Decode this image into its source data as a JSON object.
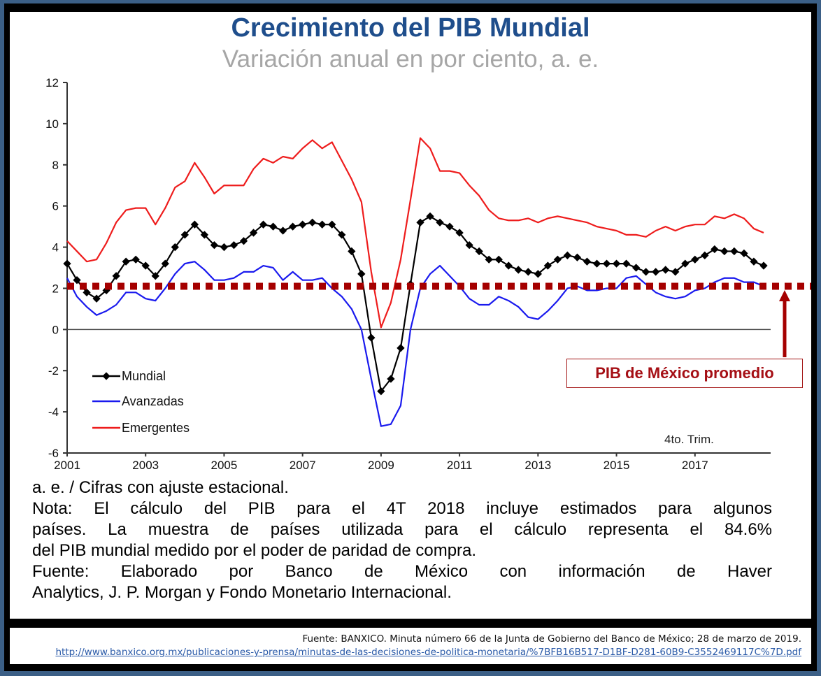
{
  "chart_data": {
    "type": "line",
    "title": "Crecimiento del PIB Mundial",
    "subtitle": "Variación anual en por ciento, a. e.",
    "xlabel": "",
    "ylabel": "",
    "x_start": 2001,
    "x_step": 0.25,
    "xlim": [
      2001,
      2019
    ],
    "ylim": [
      -6,
      12
    ],
    "yticks": [
      12,
      10,
      8,
      6,
      4,
      2,
      0,
      -2,
      -4,
      -6
    ],
    "xticks": [
      2001,
      2003,
      2005,
      2007,
      2009,
      2011,
      2013,
      2015,
      2017
    ],
    "grid": false,
    "legend_position": "bottom-left",
    "annotation": "4to. Trim.",
    "series": [
      {
        "name": "Mundial",
        "color": "#000000",
        "marker": "diamond",
        "values": [
          3.2,
          2.4,
          1.8,
          1.5,
          1.9,
          2.6,
          3.3,
          3.4,
          3.1,
          2.6,
          3.2,
          4.0,
          4.6,
          5.1,
          4.6,
          4.1,
          4.0,
          4.1,
          4.3,
          4.7,
          5.1,
          5.0,
          4.8,
          5.0,
          5.1,
          5.2,
          5.1,
          5.1,
          4.6,
          3.8,
          2.7,
          -0.4,
          -3.0,
          -2.4,
          -0.9,
          2.2,
          5.2,
          5.5,
          5.2,
          5.0,
          4.7,
          4.1,
          3.8,
          3.4,
          3.4,
          3.1,
          2.9,
          2.8,
          2.7,
          3.1,
          3.4,
          3.6,
          3.5,
          3.3,
          3.2,
          3.2,
          3.2,
          3.2,
          3.0,
          2.8,
          2.8,
          2.9,
          2.8,
          3.2,
          3.4,
          3.6,
          3.9,
          3.8,
          3.8,
          3.7,
          3.3,
          3.1
        ]
      },
      {
        "name": "Avanzadas",
        "color": "#1a1aee",
        "marker": "none",
        "values": [
          2.5,
          1.6,
          1.1,
          0.7,
          0.9,
          1.2,
          1.8,
          1.8,
          1.5,
          1.4,
          2.0,
          2.7,
          3.2,
          3.3,
          2.9,
          2.4,
          2.4,
          2.5,
          2.8,
          2.8,
          3.1,
          3.0,
          2.4,
          2.8,
          2.4,
          2.4,
          2.5,
          2.0,
          1.6,
          1.0,
          0.0,
          -2.4,
          -4.7,
          -4.6,
          -3.7,
          0.0,
          2.0,
          2.7,
          3.1,
          2.6,
          2.1,
          1.5,
          1.2,
          1.2,
          1.6,
          1.4,
          1.1,
          0.6,
          0.5,
          0.9,
          1.4,
          2.0,
          2.1,
          1.9,
          1.9,
          2.0,
          2.0,
          2.5,
          2.6,
          2.2,
          1.8,
          1.6,
          1.5,
          1.6,
          1.9,
          2.0,
          2.3,
          2.5,
          2.5,
          2.3,
          2.3,
          2.1
        ]
      },
      {
        "name": "Emergentes",
        "color": "#ee1c1c",
        "marker": "none",
        "values": [
          4.3,
          3.8,
          3.3,
          3.4,
          4.2,
          5.2,
          5.8,
          5.9,
          5.9,
          5.1,
          5.9,
          6.9,
          7.2,
          8.1,
          7.4,
          6.6,
          7.0,
          7.0,
          7.0,
          7.8,
          8.3,
          8.1,
          8.4,
          8.3,
          8.8,
          9.2,
          8.8,
          9.1,
          8.2,
          7.3,
          6.2,
          2.8,
          0.1,
          1.3,
          3.4,
          6.3,
          9.3,
          8.8,
          7.7,
          7.7,
          7.6,
          7.0,
          6.5,
          5.8,
          5.4,
          5.3,
          5.3,
          5.4,
          5.2,
          5.4,
          5.5,
          5.4,
          5.3,
          5.2,
          5.0,
          4.9,
          4.8,
          4.6,
          4.6,
          4.5,
          4.8,
          5.0,
          4.8,
          5.0,
          5.1,
          5.1,
          5.5,
          5.4,
          5.6,
          5.4,
          4.9,
          4.7
        ]
      },
      {
        "name": "PIB de México promedio",
        "color": "#a50000",
        "marker": "none",
        "style": "dotted",
        "constant": 2.1
      }
    ]
  },
  "labels": {
    "callout": "PIB de México promedio",
    "quarter_note": "4to. Trim."
  },
  "notes": {
    "line1": "a. e. / Cifras con ajuste estacional.",
    "line2": "Nota: El cálculo del PIB para el 4T 2018 incluye estimados para algunos",
    "line3": "países. La muestra de países utilizada para el cálculo representa el 84.6%",
    "line4": "del PIB mundial medido por el poder de paridad de compra.",
    "line5": "Fuente: Elaborado por Banco de México con información de Haver",
    "line6": "Analytics, J. P. Morgan y Fondo Monetario Internacional."
  },
  "source": {
    "citation": "Fuente: BANXICO. Minuta número 66 de la Junta de Gobierno del Banco de México; 28 de marzo de 2019.",
    "url": "http://www.banxico.org.mx/publicaciones-y-prensa/minutas-de-las-decisiones-de-politica-monetaria/%7BFB16B517-D1BF-D281-60B9-C3552469117C%7D.pdf"
  }
}
